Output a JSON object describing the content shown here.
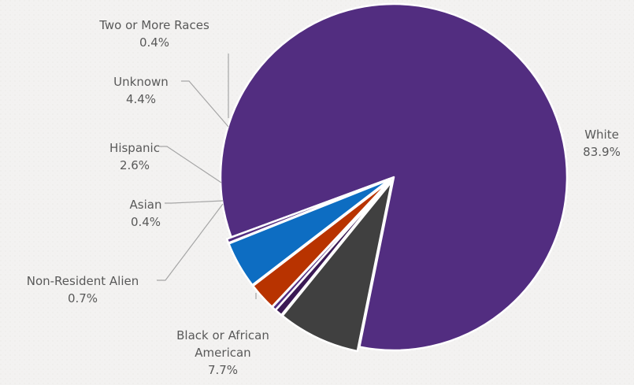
{
  "chart_data": {
    "type": "pie",
    "title": "",
    "slices": [
      {
        "label": "White",
        "value": 83.9,
        "display": "83.9%",
        "color": "#522d80"
      },
      {
        "label": "Black or African American",
        "value": 7.7,
        "display": "7.7%",
        "color": "#404040"
      },
      {
        "label": "Non-Resident Alien",
        "value": 0.7,
        "display": "0.7%",
        "color": "#3b1a55"
      },
      {
        "label": "Asian",
        "value": 0.4,
        "display": "0.4%",
        "color": "#522d80"
      },
      {
        "label": "Hispanic",
        "value": 2.6,
        "display": "2.6%",
        "color": "#b83300"
      },
      {
        "label": "Unknown",
        "value": 4.4,
        "display": "4.4%",
        "color": "#0d6dc2"
      },
      {
        "label": "Two or More Races",
        "value": 0.4,
        "display": "0.4%",
        "color": "#522d80"
      }
    ],
    "data_labels": "outside with leader lines",
    "legend": "none"
  }
}
